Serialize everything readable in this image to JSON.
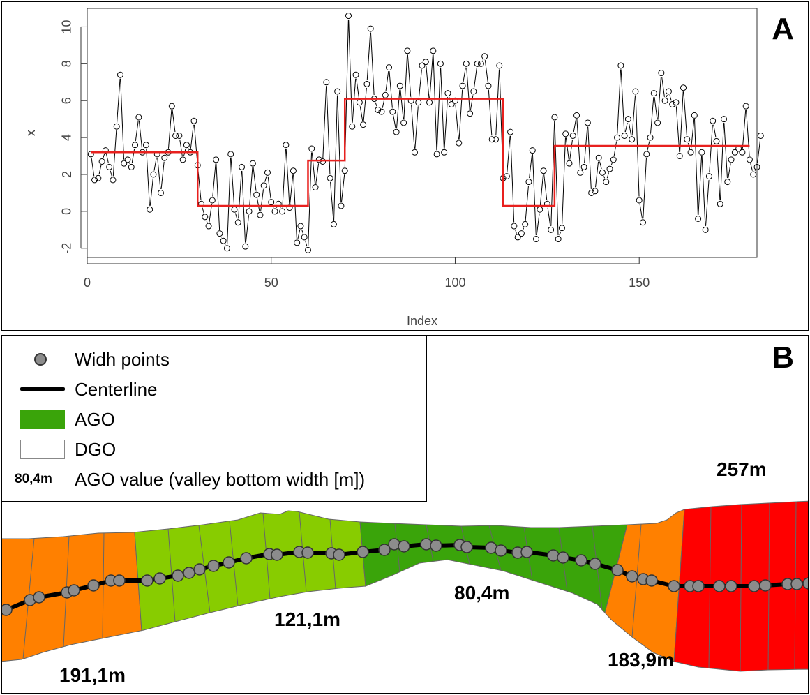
{
  "panel_a": {
    "letter": "A",
    "chart_data": {
      "type": "scatter",
      "title": "",
      "xlabel": "Index",
      "ylabel": "x",
      "xlim": [
        0,
        182
      ],
      "ylim": [
        -2.5,
        11
      ],
      "x_ticks": [
        "0",
        "50",
        "100",
        "150"
      ],
      "x_tick_values": [
        0,
        50,
        100,
        150
      ],
      "y_ticks": [
        "-2",
        "0",
        "2",
        "4",
        "6",
        "8",
        "10"
      ],
      "y_tick_values": [
        -2,
        0,
        2,
        4,
        6,
        8,
        10
      ],
      "grid": false,
      "series": [
        {
          "kind": "points-connected",
          "values": [
            3.1,
            1.7,
            1.8,
            2.7,
            3.3,
            2.4,
            1.7,
            4.6,
            7.4,
            2.6,
            2.8,
            2.4,
            3.6,
            5.1,
            3.2,
            3.6,
            0.1,
            2.0,
            3.1,
            1.0,
            2.9,
            3.2,
            5.7,
            4.1,
            4.1,
            2.8,
            3.6,
            3.2,
            4.9,
            2.5,
            0.4,
            -0.3,
            -0.8,
            0.6,
            2.8,
            -1.2,
            -1.6,
            -2.0,
            3.1,
            0.1,
            -0.6,
            2.4,
            -1.9,
            0.0,
            2.6,
            0.9,
            -0.2,
            1.4,
            2.1,
            0.5,
            0.0,
            0.4,
            0.0,
            3.6,
            0.2,
            2.2,
            -1.7,
            -0.8,
            -1.4,
            -2.1,
            3.4,
            1.3,
            2.8,
            2.7,
            7.0,
            1.8,
            -0.7,
            6.5,
            0.3,
            2.2,
            10.6,
            4.6,
            7.4,
            5.9,
            4.7,
            6.9,
            9.9,
            6.1,
            5.5,
            5.4,
            6.3,
            7.8,
            5.4,
            4.3,
            6.8,
            4.8,
            8.7,
            6.0,
            3.2,
            5.9,
            7.9,
            8.1,
            5.9,
            8.7,
            3.1,
            8.0,
            3.2,
            6.4,
            5.8,
            6.0,
            3.7,
            6.8,
            8.0,
            5.3,
            6.5,
            8.0,
            8.0,
            8.4,
            6.8,
            3.9,
            3.9,
            7.9,
            1.8,
            1.9,
            4.3,
            -0.8,
            -1.4,
            -1.2,
            -0.7,
            1.6,
            3.3,
            -1.5,
            0.1,
            2.2,
            0.4,
            -1.0,
            5.1,
            -1.5,
            -0.9,
            4.2,
            2.6,
            4.1,
            5.2,
            2.1,
            2.4,
            4.8,
            1.0,
            1.1,
            2.9,
            2.1,
            1.6,
            2.3,
            2.8,
            4.0,
            7.9,
            4.1,
            5.0,
            3.9,
            6.5,
            0.6,
            -0.6,
            3.1,
            4.0,
            6.4,
            4.8,
            7.5,
            6.0,
            6.5,
            5.8,
            5.9,
            3.0,
            6.7,
            3.9,
            3.2,
            5.2,
            -0.4,
            3.2,
            -1.0,
            1.9,
            4.9,
            3.8,
            0.4,
            5.0,
            1.6,
            2.8,
            3.2,
            3.4,
            3.2,
            5.7,
            2.8,
            2.0,
            2.4,
            4.1
          ]
        },
        {
          "kind": "step",
          "segments": [
            {
              "x0": 1,
              "x1": 30,
              "y": 3.2
            },
            {
              "x0": 30,
              "x1": 60,
              "y": 0.3
            },
            {
              "x0": 60,
              "x1": 70,
              "y": 2.75
            },
            {
              "x0": 70,
              "x1": 113,
              "y": 6.1
            },
            {
              "x0": 113,
              "x1": 127,
              "y": 0.3
            },
            {
              "x0": 127,
              "x1": 180,
              "y": 3.55
            }
          ]
        }
      ]
    }
  },
  "panel_b": {
    "letter": "B",
    "legend": {
      "width_points": "Widh points",
      "centerline": "Centerline",
      "ago": "AGO",
      "dgo": "DGO",
      "value_sample": "80,4m",
      "value_desc": "AGO value (valley bottom width [m])"
    },
    "colors": {
      "orange": "#ff8000",
      "light_green": "#88cc00",
      "green": "#3aa40a",
      "red": "#ff0000",
      "point_fill": "#8c8c8c"
    },
    "segments": [
      {
        "value": "191,1m",
        "color": "#ff8000"
      },
      {
        "value": "121,1m",
        "color": "#88cc00"
      },
      {
        "value": "80,4m",
        "color": "#3aa40a"
      },
      {
        "value": "183,9m",
        "color": "#ff8000"
      },
      {
        "value": "257m",
        "color": "#ff0000"
      }
    ]
  }
}
